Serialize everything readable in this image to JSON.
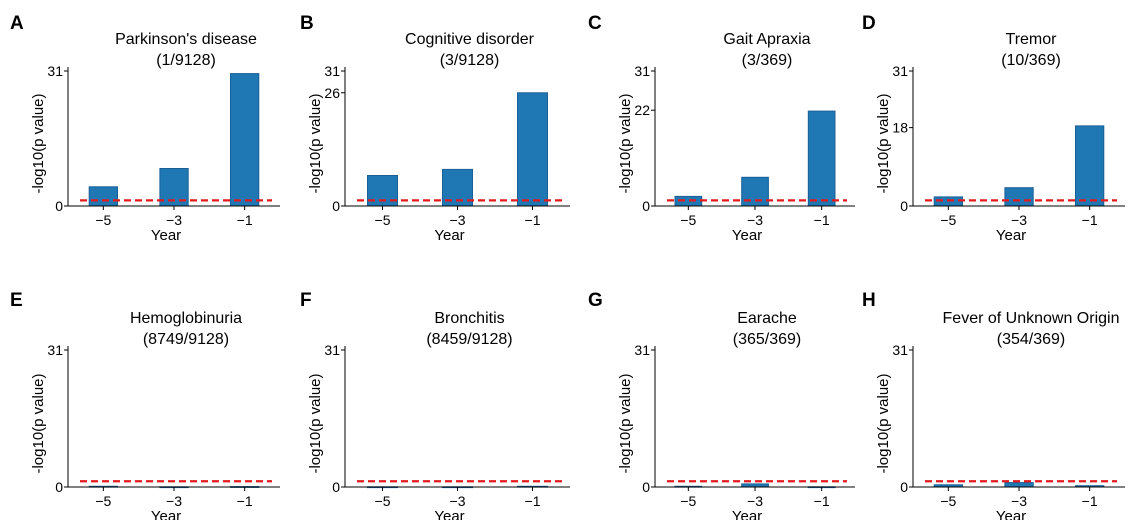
{
  "chart_data": [
    {
      "panel_letter": "A",
      "title": "Parkinson's disease",
      "subtitle": "(1/9128)",
      "type": "bar",
      "x": [
        -5,
        -3,
        -1
      ],
      "xtick_labels": [
        "−5",
        "−3",
        "−1"
      ],
      "values": [
        4.4,
        8.6,
        30.4
      ],
      "ylim": [
        0,
        31
      ],
      "yticks": [
        0,
        31
      ],
      "ytick_labels": [
        "0",
        "31"
      ],
      "threshold": 1.3,
      "xlabel": "Year",
      "ylabel": "-log10(p value)"
    },
    {
      "panel_letter": "B",
      "title": "Cognitive disorder",
      "subtitle": "(3/9128)",
      "type": "bar",
      "x": [
        -5,
        -3,
        -1
      ],
      "xtick_labels": [
        "−5",
        "−3",
        "−1"
      ],
      "values": [
        7.0,
        8.4,
        26.0
      ],
      "ylim": [
        0,
        31
      ],
      "yticks": [
        0,
        26,
        31
      ],
      "ytick_labels": [
        "0",
        "26",
        "31"
      ],
      "threshold": 1.3,
      "xlabel": "Year",
      "ylabel": "-log10(p value)"
    },
    {
      "panel_letter": "C",
      "title": "Gait Apraxia",
      "subtitle": "(3/369)",
      "type": "bar",
      "x": [
        -5,
        -3,
        -1
      ],
      "xtick_labels": [
        "−5",
        "−3",
        "−1"
      ],
      "values": [
        2.2,
        6.6,
        21.8
      ],
      "ylim": [
        0,
        31
      ],
      "yticks": [
        0,
        22,
        31
      ],
      "ytick_labels": [
        "0",
        "22",
        "31"
      ],
      "threshold": 1.3,
      "xlabel": "Year",
      "ylabel": "-log10(p value)"
    },
    {
      "panel_letter": "D",
      "title": "Tremor",
      "subtitle": "(10/369)",
      "type": "bar",
      "x": [
        -5,
        -3,
        -1
      ],
      "xtick_labels": [
        "−5",
        "−3",
        "−1"
      ],
      "values": [
        2.1,
        4.2,
        18.4
      ],
      "ylim": [
        0,
        31
      ],
      "yticks": [
        0,
        18,
        31
      ],
      "ytick_labels": [
        "0",
        "18",
        "31"
      ],
      "threshold": 1.3,
      "xlabel": "Year",
      "ylabel": "-log10(p value)"
    },
    {
      "panel_letter": "E",
      "title": "Hemoglobinuria",
      "subtitle": "(8749/9128)",
      "type": "bar",
      "x": [
        -5,
        -3,
        -1
      ],
      "xtick_labels": [
        "−5",
        "−3",
        "−1"
      ],
      "values": [
        0.15,
        0.05,
        0.1
      ],
      "ylim": [
        0,
        31
      ],
      "yticks": [
        0,
        31
      ],
      "ytick_labels": [
        "0",
        "31"
      ],
      "threshold": 1.3,
      "xlabel": "Year",
      "ylabel": "-log10(p value)"
    },
    {
      "panel_letter": "F",
      "title": "Bronchitis",
      "subtitle": "(8459/9128)",
      "type": "bar",
      "x": [
        -5,
        -3,
        -1
      ],
      "xtick_labels": [
        "−5",
        "−3",
        "−1"
      ],
      "values": [
        0.05,
        0.05,
        0.15
      ],
      "ylim": [
        0,
        31
      ],
      "yticks": [
        0,
        31
      ],
      "ytick_labels": [
        "0",
        "31"
      ],
      "threshold": 1.3,
      "xlabel": "Year",
      "ylabel": "-log10(p value)"
    },
    {
      "panel_letter": "G",
      "title": "Earache",
      "subtitle": "(365/369)",
      "type": "bar",
      "x": [
        -5,
        -3,
        -1
      ],
      "xtick_labels": [
        "−5",
        "−3",
        "−1"
      ],
      "values": [
        0.15,
        0.7,
        0.05
      ],
      "ylim": [
        0,
        31
      ],
      "yticks": [
        0,
        31
      ],
      "ytick_labels": [
        "0",
        "31"
      ],
      "threshold": 1.3,
      "xlabel": "Year",
      "ylabel": "-log10(p value)"
    },
    {
      "panel_letter": "H",
      "title": "Fever of Unknown Origin",
      "subtitle": "(354/369)",
      "type": "bar",
      "x": [
        -5,
        -3,
        -1
      ],
      "xtick_labels": [
        "−5",
        "−3",
        "−1"
      ],
      "values": [
        0.5,
        1.0,
        0.3
      ],
      "ylim": [
        0,
        31
      ],
      "yticks": [
        0,
        31
      ],
      "ytick_labels": [
        "0",
        "31"
      ],
      "threshold": 1.3,
      "xlabel": "Year",
      "ylabel": "-log10(p value)"
    }
  ],
  "colors": {
    "bar": "#1f77b4",
    "bar_edge": "#1a5f96",
    "threshold": "#e31a1c",
    "axis": "#000000"
  }
}
